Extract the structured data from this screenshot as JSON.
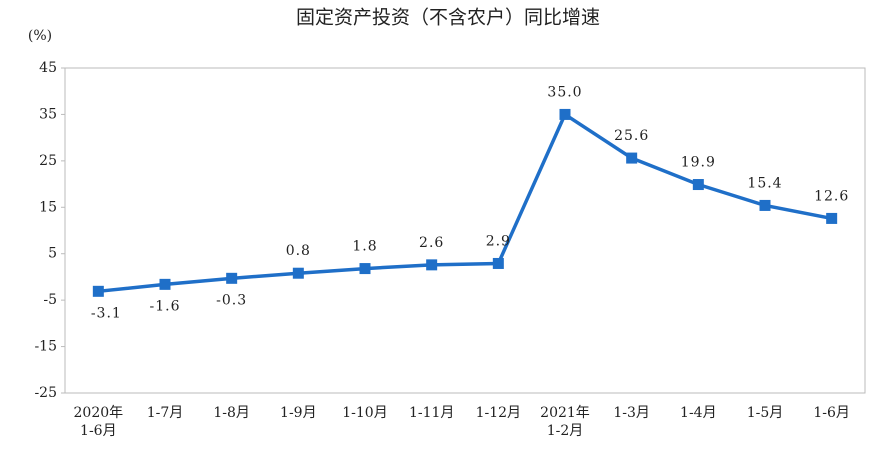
{
  "chart_data": {
    "type": "line",
    "title": "固定资产投资（不含农户）同比增速",
    "y_unit": "(%)",
    "categories": [
      "2020年\n1-6月",
      "1-7月",
      "1-8月",
      "1-9月",
      "1-10月",
      "1-11月",
      "1-12月",
      "2021年\n1-2月",
      "1-3月",
      "1-4月",
      "1-5月",
      "1-6月"
    ],
    "series": [
      {
        "name": "固定资产投资同比增速",
        "color": "#1f6fc8",
        "values": [
          -3.1,
          -1.6,
          -0.3,
          0.8,
          1.8,
          2.6,
          2.9,
          35.0,
          25.6,
          19.9,
          15.4,
          12.6
        ],
        "value_labels": [
          "-3.1",
          "-1.6",
          "-0.3",
          "0.8",
          "1.8",
          "2.6",
          "2.9",
          "35.0",
          "25.6",
          "19.9",
          "15.4",
          "12.6"
        ]
      }
    ],
    "ylim": [
      -25,
      45
    ],
    "yticks": [
      -25,
      -15,
      -5,
      5,
      15,
      25,
      35,
      45
    ],
    "grid": false
  }
}
